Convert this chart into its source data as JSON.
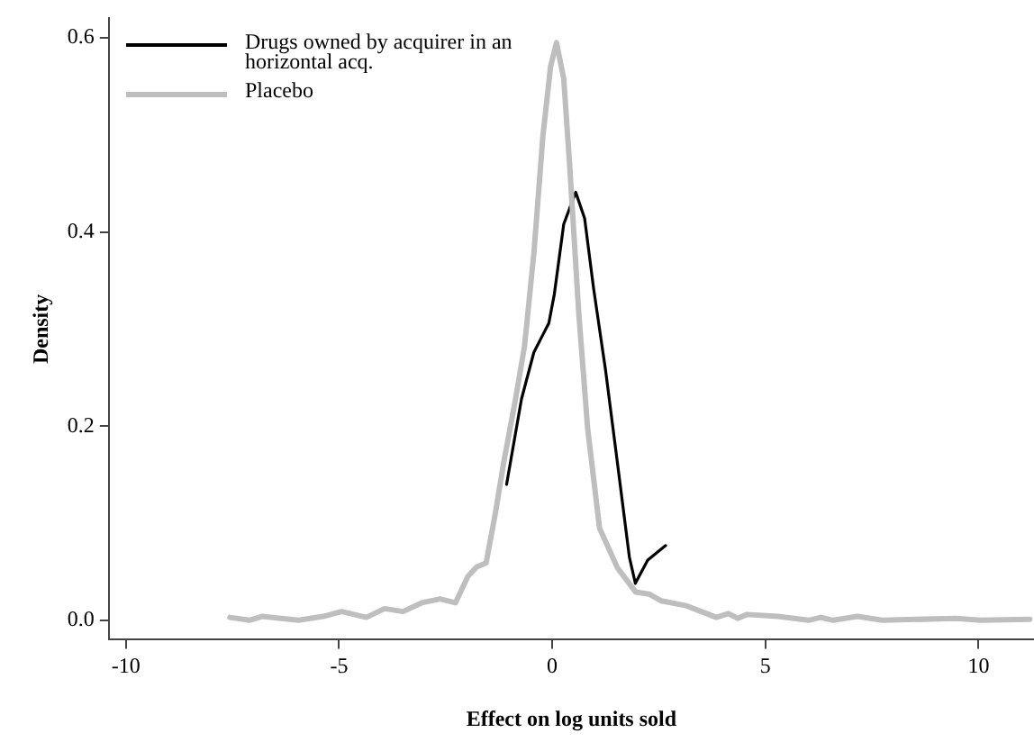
{
  "chart_data": {
    "type": "line",
    "xlabel": "Effect on log units sold",
    "ylabel": "Density",
    "xlim": [
      -10.4,
      11.3
    ],
    "xticks": [
      -10,
      -5,
      0,
      5,
      10
    ],
    "ylim": [
      -0.02,
      0.62
    ],
    "yticks": [
      {
        "value": 0,
        "label": "0.0"
      },
      {
        "value": 0.2,
        "label": "0.2"
      },
      {
        "value": 0.4,
        "label": "0.4"
      },
      {
        "value": 0.6,
        "label": "0.6"
      }
    ],
    "grid": false,
    "legend": "top left",
    "marker": "none",
    "line_style": "solid",
    "series": [
      {
        "name": "Drugs owned by acquirer in an horizontal acq.",
        "color": "#000000",
        "x": [
          -1.07,
          -0.72,
          -0.43,
          -0.22,
          -0.08,
          0.05,
          0.27,
          0.55,
          0.76,
          0.97,
          1.25,
          1.53,
          1.81,
          1.95,
          2.24,
          2.66
        ],
        "values": [
          0.14,
          0.228,
          0.276,
          0.294,
          0.306,
          0.336,
          0.408,
          0.441,
          0.414,
          0.342,
          0.258,
          0.162,
          0.065,
          0.038,
          0.062,
          0.077
        ]
      },
      {
        "name": "Placebo",
        "color": "#bebebe",
        "x": [
          -7.56,
          -7.1,
          -6.81,
          -5.95,
          -5.37,
          -4.94,
          -4.36,
          -3.93,
          -3.5,
          -3.06,
          -2.63,
          -2.27,
          -1.98,
          -1.77,
          -1.55,
          -1.33,
          -1.14,
          -0.86,
          -0.65,
          -0.43,
          -0.22,
          -0.04,
          0.1,
          0.27,
          0.41,
          0.62,
          0.83,
          1.11,
          1.53,
          1.96,
          2.27,
          2.56,
          3.14,
          3.85,
          4.13,
          4.35,
          4.57,
          5.29,
          6.01,
          6.3,
          6.59,
          7.16,
          7.74,
          9.47,
          10.05,
          11.2
        ],
        "values": [
          0.003,
          0,
          0.004,
          0,
          0.004,
          0.009,
          0.003,
          0.012,
          0.009,
          0.018,
          0.022,
          0.018,
          0.045,
          0.055,
          0.059,
          0.111,
          0.162,
          0.228,
          0.282,
          0.378,
          0.498,
          0.57,
          0.595,
          0.558,
          0.468,
          0.318,
          0.198,
          0.095,
          0.054,
          0.029,
          0.027,
          0.02,
          0.015,
          0.003,
          0.007,
          0.002,
          0.006,
          0.004,
          0,
          0.003,
          0,
          0.004,
          0,
          0.002,
          0,
          0.001
        ]
      }
    ]
  }
}
